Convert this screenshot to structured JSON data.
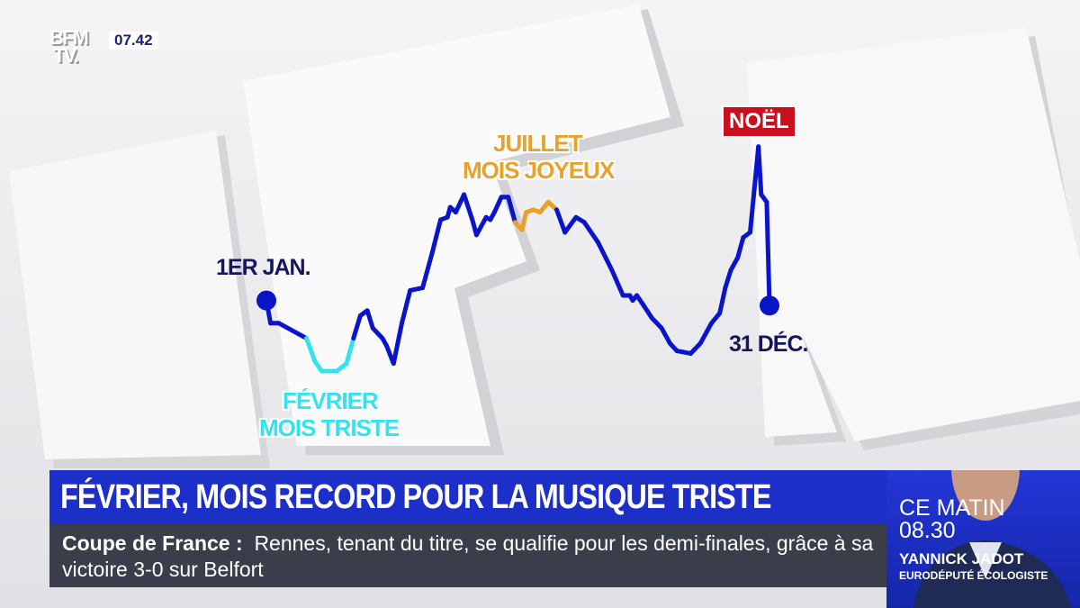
{
  "channel": {
    "logo": "BFM TV",
    "time": "07.42"
  },
  "graphic": {
    "start_label": "1ER JAN.",
    "end_label": "31 DÉC.",
    "feb_label": [
      "FÉVRIER",
      "MOIS TRISTE"
    ],
    "jul_label": [
      "JUILLET",
      "MOIS JOYEUX"
    ],
    "noel_label": "NOËL"
  },
  "chart_data": {
    "type": "line",
    "xlabel": "",
    "ylabel": "",
    "xlim": [
      1,
      365
    ],
    "axes_visible": false,
    "grid": false,
    "colors": {
      "line": "#0a14c8",
      "february": "#34e2f0",
      "july": "#e9a12a"
    },
    "highlights": [
      {
        "label": "FÉVRIER",
        "range": [
          30,
          64
        ],
        "color": "#34e2f0"
      },
      {
        "label": "JUILLET",
        "range": [
          181,
          211
        ],
        "color": "#e9a12a"
      }
    ],
    "points": [
      [
        1,
        38
      ],
      [
        4,
        29
      ],
      [
        10,
        29
      ],
      [
        30,
        23
      ],
      [
        36,
        14
      ],
      [
        41,
        10
      ],
      [
        52,
        10
      ],
      [
        59,
        13
      ],
      [
        64,
        23
      ],
      [
        69,
        32
      ],
      [
        74,
        34
      ],
      [
        78,
        27
      ],
      [
        85,
        23
      ],
      [
        88,
        20
      ],
      [
        93,
        13
      ],
      [
        99,
        29
      ],
      [
        105,
        42
      ],
      [
        114,
        43
      ],
      [
        121,
        57
      ],
      [
        127,
        70
      ],
      [
        132,
        71
      ],
      [
        134,
        75
      ],
      [
        138,
        73
      ],
      [
        144,
        80
      ],
      [
        150,
        70
      ],
      [
        153,
        64
      ],
      [
        160,
        71
      ],
      [
        163,
        70
      ],
      [
        166,
        73
      ],
      [
        171,
        79
      ],
      [
        176,
        79
      ],
      [
        181,
        69
      ],
      [
        186,
        66
      ],
      [
        189,
        73
      ],
      [
        194,
        74
      ],
      [
        199,
        73
      ],
      [
        205,
        77
      ],
      [
        211,
        74
      ],
      [
        217,
        65
      ],
      [
        225,
        71
      ],
      [
        231,
        69
      ],
      [
        241,
        61
      ],
      [
        251,
        50
      ],
      [
        259,
        40
      ],
      [
        264,
        40
      ],
      [
        266,
        38
      ],
      [
        269,
        40
      ],
      [
        274,
        36
      ],
      [
        280,
        31
      ],
      [
        287,
        27
      ],
      [
        293,
        21
      ],
      [
        298,
        18
      ],
      [
        308,
        17
      ],
      [
        315,
        21
      ],
      [
        323,
        29
      ],
      [
        329,
        33
      ],
      [
        333,
        43
      ],
      [
        337,
        50
      ],
      [
        342,
        55
      ],
      [
        346,
        63
      ],
      [
        351,
        65
      ],
      [
        354,
        82
      ],
      [
        357,
        99
      ],
      [
        359,
        80
      ],
      [
        363,
        77
      ],
      [
        365,
        36
      ]
    ]
  },
  "headline": "FÉVRIER, MOIS RECORD POUR LA MUSIQUE TRISTE",
  "ticker": {
    "topic": "Coupe de France :",
    "text": "Rennes, tenant du titre, se qualifie pour les demi-finales, grâce à sa victoire 3-0 sur Belfort"
  },
  "guest": {
    "line1": "CE MATIN",
    "line2": "08.30",
    "name": "YANNICK JADOT",
    "role": "EURODÉPUTÉ ÉCOLOGISTE"
  }
}
